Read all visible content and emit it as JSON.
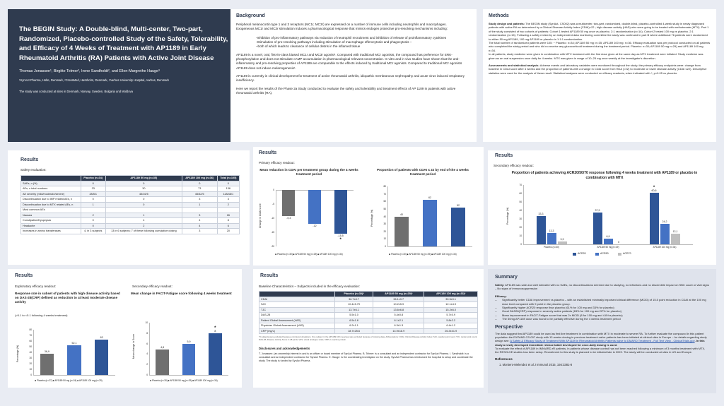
{
  "header": {
    "title": "The BEGIN Study: A Double-blind, Multi-center, Two-part, Randomized, Placebo-controlled Study of the Safety, Tolerability, and Efficacy of 4 Weeks of Treatment with AP1189 in Early Rheumatoid Arthritis (RA) Patients with Active Joint Disease",
    "authors": "Thomas Jonassen¹, Birgitte Telmer², Irene Sandholdt², and Ellen-Margrethe Hauge³",
    "affiliations": "¹SynAct Pharma, Holte, Denmark, ²CrossMed, Hørsholm, Denmark, ³Aarhus University Hospital, Aarhus, Denmark",
    "sites": "The study was conducted at sites in Denmark, Norway, Sweden, Bulgaria and Moldova"
  },
  "background": {
    "title": "Background",
    "p1": "Peripheral melanocortin type 1 and 3 receptors (MC1r, MC3r) are expressed on a number of immune cells including neutrophils and macrophages.",
    "p2": "Exogeneous MC1r and MC3r stimulation induces a pharmacological response that mimics endogen protective pro-resolving mechanisms including:",
    "b1": "-Inhibition of pro-inflammatory pathways via reduction of neutrophil recruitment and inhibition of release of proinflammatory cytokines",
    "b2": "-Stimulation of pro-resolving pathways including stimulation of macrophage efferocytosis and phagocytosis –",
    "b3": "–both of which leads to clearance of cellular debris in the inflamed tissue",
    "p3": "AP1189 is a novel, oral, first-in-class biased MC1r and MC3r agonist¹. Compared with traditional MCr agonists, the compound has preference for ERK-phosphorylation and does not stimulate cAMP accumulation in pharmacological relevant concentration. In vitro and in vivo studies have shown that the anti-inflammatory and pro-resolving properties of AP1189 are comparable to the effects induced by traditional MCr agonists. Compared to traditional MCr agonists AP1189 does not induce melanogenesis¹.",
    "p4": "AP1189 is currently in clinical development for treatment of active rheumatoid arthritis, idiopathic membranous nephropathy and acute virus induced respiratory insufficiency.",
    "p5": "Here we report the results of the Phase 2a Study conducted to evaluate the safety and tolerability and treatment effects of AP 1189 in patients with active rheumatoid arthritis (RA)."
  },
  "methods": {
    "title": "Methods",
    "p1h": "Study design and patients:",
    "p1": "The BEGIN study (SynAct- CS002) was a multicenter, two-part, randomized, double-blind, placebo-controlled 4-week study in newly diagnosed patients with active RA as determined by a Clinical Disease Activity Index (CDAI)>22 ; high disease activity (HAD) who were going to be treated with methotrexate (MTX). Part 1 of the study consisted of two cohorts of patients: Cohort 1 tested AP1189 50 mg once vs placebo. 2:1 randomization (n=14); Cohort 2 tested 100 mg vs placebo. 2:1 randomization (n=15). Following a safety review by an independent data monitoring committee the study was continued in part B where additional 76 patients were randomized to either 50 mg AP1189, 100 mg AP1189 or placebo in 1:1:1 randomization.",
    "p2": "The total number of randomized patients were 105: ~ Placebo: n=34; AP1189 50 mg: n=35; AP1189 100 mg: n=36. Efficacy evaluation was per protocol conducted on all patients who completed the study period and who did no receive any glucocorticoid treatment during the treatment period. Placebo: n=30; AP1189 50 mg n=29) and AP1189 100 mg n=34.",
    "p3": "In all patients, study medicine were given in combination with MTX treatment with the first dose given at the same day as MTX treatment were initiated. Study medicine was given as an oral suspension once daily for 4 weeks. MTX was given in range of 10–25 mg once weekly at the investigator's discretion.",
    "p4h": "Assessments and statistical analysis:",
    "p4": "Adverse events and laboratory variables were monitored throughout the study; the primary efficacy endpoints were: change from baseline in CDAI score after 4 weeks and the proportion of patients with a change in CDAI score from HDA (>22) to moderate or lower disease activity (CDAI ≤22). Descriptive statistics were used for the analysis of these result. Statistical analyses were conducted on efficacy readouts, when indicated with *; p<0.05 vs placebo."
  },
  "safety": {
    "title": "Results",
    "sub": "Safety evaluation:",
    "headers": [
      "",
      "Placebo (n=34)",
      "AP1189 50 mg (n=35)",
      "AP1189 100 mg (n=36)",
      "Total (n=105)"
    ],
    "rows": [
      [
        "SAEs, n (%)",
        "0",
        "0",
        "0",
        "0"
      ],
      [
        "AEs, n total numbers",
        "33",
        "30",
        "73",
        "136"
      ],
      [
        "AE severity (mild/moderate/severe)",
        "28/5/1",
        "45/16/5",
        "45/32/5",
        "118/48/1"
      ],
      [
        "Discontinuation due to IMP related AEs, n",
        "0",
        "0",
        "3",
        "3"
      ],
      [
        "Discontinuation due to MTX related AEs, n",
        "1",
        "0",
        "1",
        "2"
      ],
      [
        "Most common AEs",
        "",
        "",
        "",
        ""
      ],
      [
        "Nausea",
        "2",
        "1",
        "3",
        "26"
      ],
      [
        "Constipation/Dyspepsia",
        "0",
        "4",
        "4",
        "8"
      ],
      [
        "Headache",
        "0",
        "2",
        "4",
        "6"
      ],
      [
        "Increases in amino transferases",
        "4, in 3 subjects",
        "13 in 6 subjects; 7 of these following cumulative dosing",
        "3",
        "20"
      ]
    ]
  },
  "primary": {
    "title": "Results",
    "sub": "Primary efficacy readout:",
    "c1": {
      "title": "Mean reduction in CDAI per treatment group during the 4 weeks treatment period",
      "ylabel": "Change in CDAI score",
      "ticks": [
        "0",
        "-5",
        "-10",
        "-15",
        "-20"
      ],
      "legend": "■ Placebo (n=30) ■ AP1189 50 mg (n=29) ■ AP1189 100 mg (n=34)",
      "star": "*"
    },
    "c2": {
      "title": "Proportion of patients with CDAI ≤ 22 by end of the 4 weeks treatment period",
      "ylabel": "Percentage (%)",
      "ticks": [
        "80",
        "70",
        "60",
        "50",
        "40",
        "30",
        "20",
        "10",
        "0"
      ],
      "legend": "■ Placebo (n=30) ■ AP1189 50 mg (n=29) ■ AP1189 100 mg (n=34)"
    }
  },
  "secondary1": {
    "title": "Results",
    "sub": "Secondary efficacy readout:",
    "ctitle": "Proportion of patients achieving ACR20/50/70 response following 4 weeks treatment with AP1189 or placebo in combination with MTX",
    "ylabel": "Percentage (%)",
    "ticks": [
      "70",
      "60",
      "50",
      "40",
      "30",
      "20",
      "10",
      "0"
    ],
    "cats": [
      "Placebo (n=30)",
      "AP1189 50 mg (n=29)",
      "AP1189 100 mg (n=34)"
    ],
    "legend": [
      "ACR20",
      "ACR50",
      "ACR70"
    ],
    "star": "*"
  },
  "exploratory": {
    "title": "Results",
    "sub": "Exploratory efficacy readout:",
    "ctitle": "Response rate in subset of patients with high disease activity based on DAS-28(CRP) defined as reduction to at least moderate disease activity",
    "note": "(>5.1 to <5.1 following 4 weeks treatment)",
    "ylabel": "Percentage (%)",
    "ticks": [
      "80",
      "70",
      "60",
      "50",
      "40",
      "30",
      "20",
      "10",
      "0"
    ],
    "legend": "■ Placebo (n=27) ■ AP1189 50 mg (n=24) ■ AP1189 100 mg (n=29)"
  },
  "secondary2": {
    "sub": "Secondary efficacy readout:",
    "ctitle": "Mean change in FACIT-Fatigue score following 4 weeks treatment",
    "ylabel": "Mean change in Score",
    "ticks": [
      "10",
      "8",
      "6",
      "4",
      "2",
      "0"
    ],
    "legend": "■ Placebo (n=30) ■ AP1189 50 mg (n=29) ■ AP1189 100 mg (n=34)",
    "star": "*"
  },
  "baseline": {
    "title": "Results",
    "sub": "Baseline Characteristics – Subjects included in the efficacy evaluation:",
    "headers": [
      "",
      "Placebo (n=30)*",
      "AP1189 50 mg (n=29)*",
      "AP1189 100 mg (n=33)*"
    ],
    "rows": [
      [
        "CDAI",
        "36.7±8.7",
        "36.1±9.7",
        "39.5±9.1"
      ],
      [
        "SJC",
        "10.4±5.79",
        "10.2±5.9",
        "12.1±4.9"
      ],
      [
        "TJC",
        "13.7±6.1",
        "13.6±6.8",
        "15.2±6.0"
      ],
      [
        "DAS-28",
        "5.5±1.0",
        "5.4±0.8",
        "5.7±0.9"
      ],
      [
        "Patient Global Assessment (VAS)",
        "6.5±1.8",
        "6.1±2.1",
        "5.8±2.2"
      ],
      [
        "Physician Global Assessment (VAS)",
        "6.2±1.1",
        "6.3±1.3",
        "6.4±1.2"
      ],
      [
        "CRP (mg/L)",
        "18.7±25.6",
        "14.9±18.9",
        "26.3±41.9"
      ]
    ],
    "footnote": "*3 subjects were excluded because of protocol deviations. One subject in the AP1189 100 mg group was excluded because of missing data. Abbreviations: CDAI, Clinical Disease Activity Index; SJC, swollen joint count; TJC, tender joint count; DAS-28, Disease Activity Score in 28 joints; VAS, visual analogue scale; CRP, C-reactive protein.",
    "disc_title": "Disclosures and acknowledgements",
    "disc": "T. Jonassen: (an ownership interest in and is an officer or board member of SynAct Pharma. B. Telmer: is a consultant and an independent contractor for SynAct Pharma. I. Sandholdt: is a consultant and an independent contractor for SynAct Pharma. E. Hauge: is the coordinating investigator on the study. SynAct Pharma has reimbursed the hosp.ital to setup and coordinate the study. The study is funded by SynAct Pharma."
  },
  "summary": {
    "title": "Summary",
    "safety_h": "Safety:",
    "safety": "AP1189 was safe and well tolerated with no SAEs, no discontinuations deemed due to studying, no infections and no discernible impact on SBC count or vital signs – No signs of immunosuppression",
    "eff_h": "Efficacy:",
    "b1": "Significantly better CDAI improvement vs placebo – with an established minimally important clinical difference (MCID) of 15.5 point reduction in CDAI at the 100 mg dose level compared with 9 point in the placebo group.",
    "b2": "Significantly higher ACR20 response than placebo (61% for 100 mg and 33% for placebo)",
    "b3": "Good DAS28(CRP) response in severely active patients (63% for 100 mg and 37% for placebo)",
    "b4": "Mean improvement in FACIT-Fatigue score that was 2x MCID (8 for 100 mg and 4.8 for placebo)",
    "b5": "The 50mg AP1189 dose was found to be partially effective during the 4 weeks treatment period"
  },
  "perspective": {
    "title": "Perspective",
    "p1": "The data suggest that AP1189 could be used as first line treatment in combination with MTX in moderate to severe RA. To further evaluate the compound in this patient population the EXPAND CS-007 study with 12-weeks dosing in previous treatment naïve patients has been initiated at clinical sites in Europe – for details regarding study design see:",
    "link": "A Safety & Efficacy Study of Treatment With AP1189 in Rheumatoid Arthritis Patients naive to DMARD Treatment - Full Text View - ClinicalTrials.gov",
    "p1b": ". In this study a newly developed immediate release tablet developed for once-daily dosing is used.",
    "p2": "To evaluate the effect of AP1189 in IMN/ARD-rR patients, in patients whose disease control has not been reached following a minimum of 3 months treatment with MTX, the RESOLVE studies has been setup. Recruitment to this study is planned to be initiated late in 2022. The study will be conducted at sites in US and Europe.",
    "ref_title": "References",
    "ref": "1.   Montero-Melendez et al J Immunol 2015, 194:3381-8"
  },
  "chart_data": [
    {
      "type": "bar",
      "title": "Mean reduction in CDAI per treatment group during the 4 weeks treatment period",
      "categories": [
        "Placebo (n=30)",
        "AP1189 50 mg (n=29)",
        "AP1189 100 mg (n=34)"
      ],
      "values": [
        -9.3,
        -12,
        -15.5
      ],
      "ylim": [
        -20,
        0
      ],
      "ylabel": "Change in CDAI score"
    },
    {
      "type": "bar",
      "title": "Proportion of patients with CDAI ≤ 22 by end of the 4 weeks treatment period",
      "categories": [
        "Placebo (n=30)",
        "AP1189 50 mg (n=29)",
        "AP1189 100 mg (n=34)"
      ],
      "values": [
        40,
        62,
        52
      ],
      "ylim": [
        0,
        80
      ],
      "ylabel": "Percentage (%)"
    },
    {
      "type": "bar",
      "title": "Proportion of patients achieving ACR20/50/70 response following 4 weeks treatment with AP1189 or placebo in combination with MTX",
      "categories": [
        "Placebo (n=30)",
        "AP1189 50 mg (n=29)",
        "AP1189 100 mg (n=34)"
      ],
      "series": [
        {
          "name": "ACR20",
          "values": [
            33.3,
            37.9,
            60.6
          ]
        },
        {
          "name": "ACR50",
          "values": [
            13.3,
            6.9,
            24.2
          ]
        },
        {
          "name": "ACR70",
          "values": [
            3.3,
            0,
            12.1
          ]
        }
      ],
      "ylim": [
        0,
        70
      ],
      "ylabel": "Percentage (%)"
    },
    {
      "type": "bar",
      "title": "Response rate in subset of patients with high disease activity based on DAS-28(CRP)",
      "categories": [
        "Placebo (n=27)",
        "AP1189 50 mg (n=24)",
        "AP1189 100 mg (n=29)"
      ],
      "values": [
        36.9,
        52.1,
        63
      ],
      "ylim": [
        0,
        80
      ],
      "ylabel": "Percentage (%)"
    },
    {
      "type": "bar",
      "title": "Mean change in FACIT-Fatigue score following 4 weeks treatment",
      "categories": [
        "Placebo (n=30)",
        "AP1189 50 mg (n=29)",
        "AP1189 100 mg (n=34)"
      ],
      "values": [
        4.8,
        5.9,
        8
      ],
      "ylim": [
        0,
        10
      ],
      "ylabel": "Mean change in Score"
    }
  ],
  "colors": {
    "placebo": "#6f6f6f",
    "d50": "#4472c4",
    "d100": "#2e5597",
    "acr70": "#bfbfbf",
    "navy": "#2f3b4f"
  }
}
